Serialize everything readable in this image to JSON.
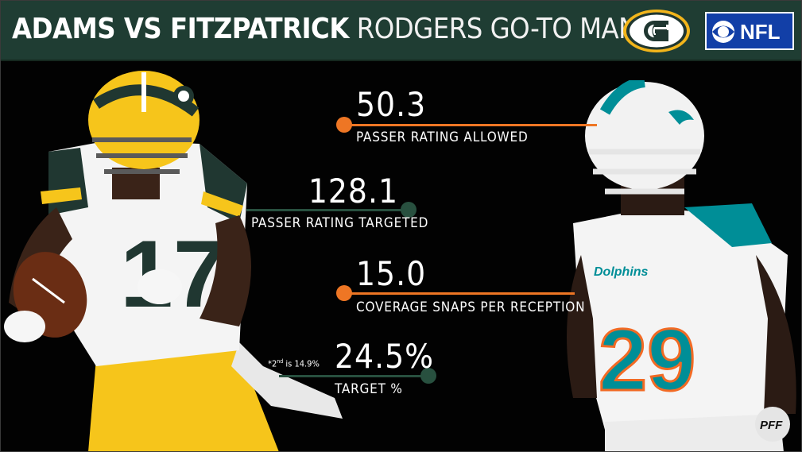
{
  "header": {
    "title_bold": "ADAMS VS FITZPATRICK",
    "title_light": "RODGERS GO-TO MAN",
    "network_logo_text": "NFL",
    "colors": {
      "header_bg": "#1f3d33",
      "accent_orange": "#ee7624",
      "accent_green": "#28503f"
    }
  },
  "stats": [
    {
      "value": "50.3",
      "label": "PASSER RATING ALLOWED",
      "color": "orange"
    },
    {
      "value": "128.1",
      "label": "PASSER RATING TARGETED",
      "color": "green"
    },
    {
      "value": "15.0",
      "label": "COVERAGE SNAPS PER RECEPTION",
      "color": "orange"
    },
    {
      "value": "24.5%",
      "label": "TARGET %",
      "color": "green"
    }
  ],
  "footnote": {
    "prefix": "*2",
    "sup": "nd",
    "suffix": " is 14.9%"
  },
  "left_player": {
    "jersey_number": "17",
    "team": "Green Bay Packers"
  },
  "right_player": {
    "jersey_number": "29",
    "jersey_text": "Dolphins",
    "team": "Miami Dolphins"
  },
  "icons": [
    "packers-g-logo",
    "cbs-eye-icon",
    "pff-logo"
  ]
}
